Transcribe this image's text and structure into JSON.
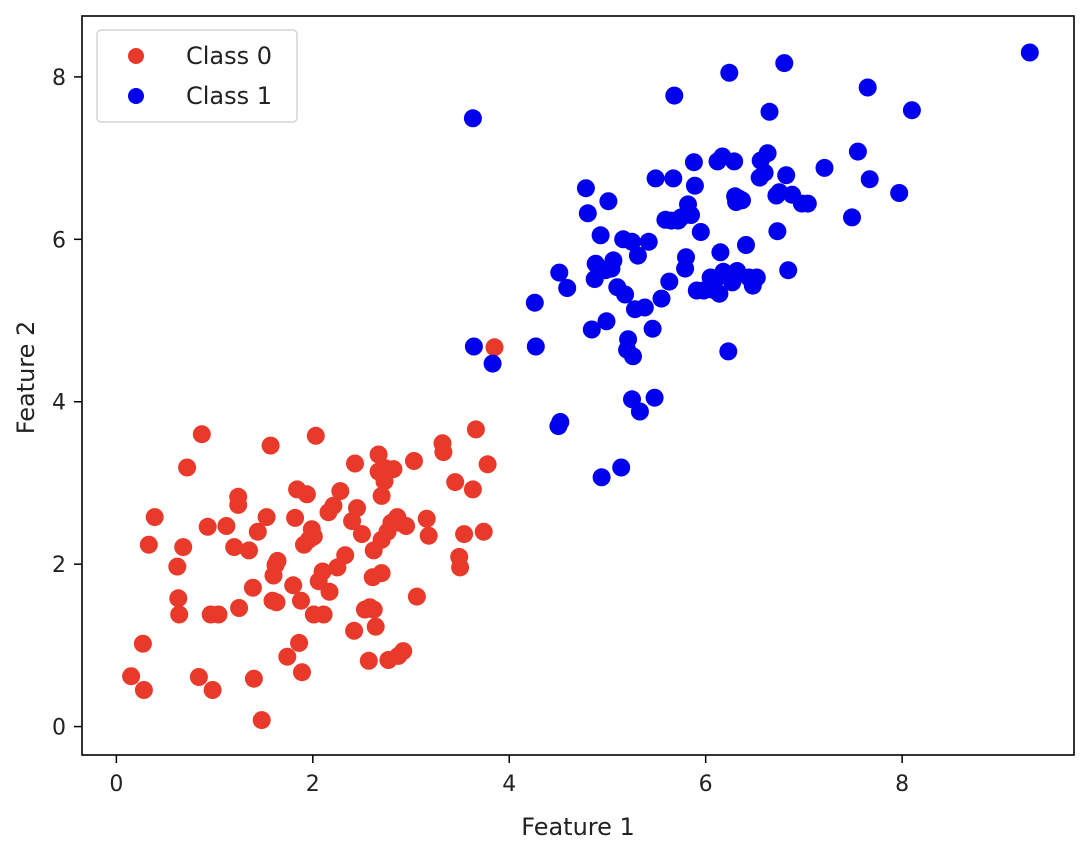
{
  "chart_data": {
    "type": "scatter",
    "title": "",
    "xlabel": "Feature 1",
    "ylabel": "Feature 2",
    "xlim": [
      -0.35,
      9.75
    ],
    "ylim": [
      -0.35,
      8.75
    ],
    "xticks": [
      0,
      2,
      4,
      6,
      8
    ],
    "yticks": [
      0,
      2,
      4,
      6,
      8
    ],
    "grid": false,
    "legend_position": "upper-left",
    "series": [
      {
        "name": "Class 0",
        "color": "#e8392a",
        "points": [
          [
            0.15,
            0.62
          ],
          [
            0.27,
            1.02
          ],
          [
            0.28,
            0.45
          ],
          [
            0.33,
            2.24
          ],
          [
            0.39,
            2.58
          ],
          [
            0.62,
            1.97
          ],
          [
            0.63,
            1.58
          ],
          [
            0.64,
            1.38
          ],
          [
            0.68,
            2.21
          ],
          [
            0.72,
            3.19
          ],
          [
            0.84,
            0.61
          ],
          [
            0.87,
            3.6
          ],
          [
            0.93,
            2.46
          ],
          [
            0.96,
            1.38
          ],
          [
            0.98,
            0.45
          ],
          [
            1.04,
            1.38
          ],
          [
            1.12,
            2.47
          ],
          [
            1.2,
            2.21
          ],
          [
            1.24,
            2.83
          ],
          [
            1.24,
            2.73
          ],
          [
            1.25,
            1.46
          ],
          [
            1.35,
            2.17
          ],
          [
            1.39,
            1.71
          ],
          [
            1.4,
            0.59
          ],
          [
            1.44,
            2.4
          ],
          [
            1.48,
            0.08
          ],
          [
            1.53,
            2.58
          ],
          [
            1.57,
            3.46
          ],
          [
            1.59,
            1.55
          ],
          [
            1.6,
            1.86
          ],
          [
            1.62,
            1.99
          ],
          [
            1.64,
            2.04
          ],
          [
            1.63,
            1.53
          ],
          [
            1.74,
            0.86
          ],
          [
            1.8,
            1.74
          ],
          [
            1.82,
            2.57
          ],
          [
            1.84,
            2.92
          ],
          [
            1.86,
            1.03
          ],
          [
            1.88,
            1.55
          ],
          [
            1.89,
            0.67
          ],
          [
            1.91,
            2.24
          ],
          [
            1.94,
            2.86
          ],
          [
            1.96,
            2.3
          ],
          [
            1.99,
            2.43
          ],
          [
            2.01,
            2.34
          ],
          [
            2.01,
            1.38
          ],
          [
            2.03,
            3.58
          ],
          [
            2.06,
            1.79
          ],
          [
            2.1,
            1.91
          ],
          [
            2.11,
            1.38
          ],
          [
            2.16,
            2.64
          ],
          [
            2.17,
            1.66
          ],
          [
            2.21,
            2.72
          ],
          [
            2.25,
            1.96
          ],
          [
            2.28,
            2.9
          ],
          [
            2.33,
            2.11
          ],
          [
            2.4,
            2.53
          ],
          [
            2.42,
            1.18
          ],
          [
            2.43,
            3.24
          ],
          [
            2.45,
            2.69
          ],
          [
            2.5,
            2.37
          ],
          [
            2.53,
            1.44
          ],
          [
            2.57,
            0.81
          ],
          [
            2.58,
            1.47
          ],
          [
            2.61,
            1.84
          ],
          [
            2.62,
            2.17
          ],
          [
            2.62,
            1.44
          ],
          [
            2.64,
            1.23
          ],
          [
            2.67,
            3.35
          ],
          [
            2.67,
            3.14
          ],
          [
            2.7,
            2.84
          ],
          [
            2.7,
            1.89
          ],
          [
            2.7,
            2.3
          ],
          [
            2.73,
            3.02
          ],
          [
            2.74,
            3.18
          ],
          [
            2.76,
            2.4
          ],
          [
            2.77,
            0.82
          ],
          [
            2.8,
            2.51
          ],
          [
            2.82,
            3.17
          ],
          [
            2.86,
            2.58
          ],
          [
            2.87,
            0.87
          ],
          [
            2.88,
            2.51
          ],
          [
            2.92,
            0.93
          ],
          [
            2.95,
            2.47
          ],
          [
            3.03,
            3.27
          ],
          [
            3.06,
            1.6
          ],
          [
            3.16,
            2.56
          ],
          [
            3.18,
            2.35
          ],
          [
            3.32,
            3.49
          ],
          [
            3.33,
            3.38
          ],
          [
            3.45,
            3.01
          ],
          [
            3.49,
            2.09
          ],
          [
            3.5,
            1.96
          ],
          [
            3.54,
            2.37
          ],
          [
            3.63,
            2.92
          ],
          [
            3.66,
            3.66
          ],
          [
            3.74,
            2.4
          ],
          [
            3.78,
            3.23
          ],
          [
            3.85,
            4.67
          ]
        ]
      },
      {
        "name": "Class 1",
        "color": "#0000ee",
        "points": [
          [
            3.63,
            7.49
          ],
          [
            3.64,
            4.68
          ],
          [
            3.83,
            4.47
          ],
          [
            4.26,
            5.22
          ],
          [
            4.27,
            4.68
          ],
          [
            4.5,
            3.7
          ],
          [
            4.52,
            3.75
          ],
          [
            4.51,
            5.59
          ],
          [
            4.59,
            5.4
          ],
          [
            4.78,
            6.63
          ],
          [
            4.8,
            6.32
          ],
          [
            4.84,
            4.89
          ],
          [
            4.87,
            5.51
          ],
          [
            4.88,
            5.7
          ],
          [
            4.94,
            3.07
          ],
          [
            4.93,
            6.05
          ],
          [
            4.98,
            5.62
          ],
          [
            4.99,
            4.99
          ],
          [
            5.01,
            6.47
          ],
          [
            5.04,
            5.64
          ],
          [
            5.06,
            5.74
          ],
          [
            5.1,
            5.41
          ],
          [
            5.14,
            3.19
          ],
          [
            5.16,
            6.0
          ],
          [
            5.18,
            5.32
          ],
          [
            5.2,
            4.64
          ],
          [
            5.21,
            4.77
          ],
          [
            5.25,
            4.03
          ],
          [
            5.25,
            5.97
          ],
          [
            5.26,
            4.56
          ],
          [
            5.28,
            5.14
          ],
          [
            5.31,
            5.8
          ],
          [
            5.33,
            3.88
          ],
          [
            5.38,
            5.16
          ],
          [
            5.42,
            5.97
          ],
          [
            5.46,
            4.9
          ],
          [
            5.48,
            4.05
          ],
          [
            5.49,
            6.75
          ],
          [
            5.55,
            5.27
          ],
          [
            5.59,
            6.24
          ],
          [
            5.63,
            5.48
          ],
          [
            5.65,
            6.23
          ],
          [
            5.67,
            6.75
          ],
          [
            5.68,
            7.77
          ],
          [
            5.72,
            6.23
          ],
          [
            5.75,
            6.27
          ],
          [
            5.79,
            5.64
          ],
          [
            5.8,
            5.78
          ],
          [
            5.82,
            6.43
          ],
          [
            5.85,
            6.3
          ],
          [
            5.88,
            6.95
          ],
          [
            5.89,
            6.66
          ],
          [
            5.91,
            5.37
          ],
          [
            5.95,
            6.09
          ],
          [
            5.98,
            5.37
          ],
          [
            6.03,
            5.39
          ],
          [
            6.05,
            5.53
          ],
          [
            6.07,
            5.38
          ],
          [
            6.11,
            5.52
          ],
          [
            6.12,
            6.96
          ],
          [
            6.14,
            5.33
          ],
          [
            6.15,
            5.84
          ],
          [
            6.17,
            7.02
          ],
          [
            6.18,
            5.6
          ],
          [
            6.23,
            4.62
          ],
          [
            6.24,
            8.05
          ],
          [
            6.27,
            5.47
          ],
          [
            6.29,
            6.96
          ],
          [
            6.3,
            6.53
          ],
          [
            6.31,
            6.46
          ],
          [
            6.32,
            5.61
          ],
          [
            6.34,
            6.5
          ],
          [
            6.37,
            6.48
          ],
          [
            6.41,
            5.93
          ],
          [
            6.44,
            5.53
          ],
          [
            6.48,
            5.43
          ],
          [
            6.52,
            5.53
          ],
          [
            6.55,
            6.76
          ],
          [
            6.56,
            6.97
          ],
          [
            6.6,
            6.82
          ],
          [
            6.63,
            7.06
          ],
          [
            6.65,
            7.57
          ],
          [
            6.73,
            6.1
          ],
          [
            6.72,
            6.54
          ],
          [
            6.75,
            6.58
          ],
          [
            6.8,
            8.17
          ],
          [
            6.82,
            6.79
          ],
          [
            6.84,
            5.62
          ],
          [
            6.88,
            6.55
          ],
          [
            6.98,
            6.44
          ],
          [
            7.04,
            6.44
          ],
          [
            7.21,
            6.88
          ],
          [
            7.49,
            6.27
          ],
          [
            7.55,
            7.08
          ],
          [
            7.65,
            7.87
          ],
          [
            7.67,
            6.74
          ],
          [
            7.97,
            6.57
          ],
          [
            8.1,
            7.59
          ],
          [
            9.3,
            8.3
          ]
        ]
      }
    ]
  }
}
